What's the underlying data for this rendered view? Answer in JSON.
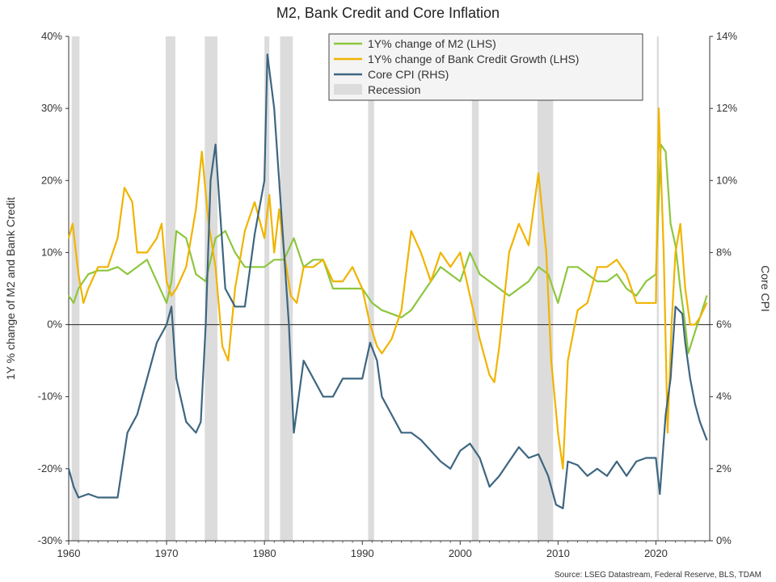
{
  "chart_data": {
    "type": "line",
    "title": "M2, Bank Credit and Core Inflation",
    "ylabel_left": "1Y % change of M2 and Bank Credit",
    "ylabel_right": "Core CPI",
    "source": "Source: LSEG Datastream, Federal Reserve, BLS, TDAM",
    "xlim": [
      1960,
      2025.5
    ],
    "ylim_left": [
      -30,
      40
    ],
    "ylim_right": [
      0,
      14
    ],
    "x_ticks": [
      1960,
      1970,
      1980,
      1990,
      2000,
      2010,
      2020
    ],
    "x_tick_labels": [
      "1960",
      "1970",
      "1980",
      "1990",
      "2000",
      "2010",
      "2020"
    ],
    "y_left_ticks": [
      -30,
      -20,
      -10,
      0,
      10,
      20,
      30,
      40
    ],
    "y_left_tick_labels": [
      "-30%",
      "-20%",
      "-10%",
      "0%",
      "10%",
      "20%",
      "30%",
      "40%"
    ],
    "y_right_ticks": [
      0,
      2,
      4,
      6,
      8,
      10,
      12,
      14
    ],
    "y_right_tick_labels": [
      "0%",
      "2%",
      "4%",
      "6%",
      "8%",
      "10%",
      "12%",
      "14%"
    ],
    "zero_line": 0,
    "legend_position": "top-center",
    "recessions": [
      [
        1960.3,
        1961.1
      ],
      [
        1969.9,
        1970.9
      ],
      [
        1973.9,
        1975.2
      ],
      [
        1980.0,
        1980.5
      ],
      [
        1981.6,
        1982.9
      ],
      [
        1990.6,
        1991.2
      ],
      [
        2001.2,
        2001.9
      ],
      [
        2007.9,
        2009.5
      ],
      [
        2020.1,
        2020.3
      ]
    ],
    "recession_label": "Recession",
    "recession_color": "#dcdcdc",
    "series": [
      {
        "name": "1Y% change of M2 (LHS)",
        "axis": "left",
        "color": "#8dc63f",
        "x": [
          1960,
          1960.5,
          1961,
          1962,
          1963,
          1964,
          1965,
          1966,
          1967,
          1968,
          1969,
          1970,
          1970.5,
          1971,
          1972,
          1973,
          1974,
          1975,
          1976,
          1977,
          1978,
          1979,
          1980,
          1981,
          1982,
          1983,
          1984,
          1985,
          1986,
          1987,
          1988,
          1989,
          1990,
          1991,
          1992,
          1993,
          1994,
          1995,
          1996,
          1997,
          1998,
          1999,
          2000,
          2001,
          2002,
          2003,
          2004,
          2005,
          2006,
          2007,
          2008,
          2009,
          2010,
          2011,
          2012,
          2013,
          2014,
          2015,
          2016,
          2017,
          2018,
          2019,
          2020,
          2020.5,
          2021,
          2021.5,
          2022,
          2022.5,
          2023,
          2023.3,
          2024,
          2024.5,
          2025.2
        ],
        "values": [
          4,
          3,
          5,
          7,
          7.5,
          7.5,
          8,
          7,
          8,
          9,
          6,
          3,
          6,
          13,
          12,
          7,
          6,
          12,
          13,
          10,
          8,
          8,
          8,
          9,
          9,
          12,
          8,
          9,
          9,
          5,
          5,
          5,
          5,
          3,
          2,
          1.5,
          1,
          2,
          4,
          6,
          8,
          7,
          6,
          10,
          7,
          6,
          5,
          4,
          5,
          6,
          8,
          7,
          3,
          8,
          8,
          7,
          6,
          6,
          7,
          5,
          4,
          6,
          7,
          25,
          24,
          14,
          11,
          5,
          0,
          -4,
          -1,
          1,
          4
        ]
      },
      {
        "name": "1Y% change of Bank Credit Growth (LHS)",
        "axis": "left",
        "color": "#f0b400",
        "x": [
          1960,
          1960.4,
          1961,
          1961.5,
          1962,
          1963,
          1964,
          1965,
          1965.7,
          1966.5,
          1967,
          1968,
          1969,
          1969.5,
          1970,
          1970.5,
          1971,
          1972,
          1973,
          1973.6,
          1974.3,
          1975,
          1975.7,
          1976.3,
          1977,
          1978,
          1979,
          1980,
          1980.5,
          1981,
          1981.5,
          1982,
          1982.7,
          1983.3,
          1984,
          1985,
          1986,
          1987,
          1988,
          1989,
          1990,
          1990.8,
          1991.5,
          1992,
          1993,
          1994,
          1995,
          1996,
          1997,
          1998,
          1999,
          2000,
          2001,
          2002,
          2003,
          2003.5,
          2004,
          2005,
          2006,
          2007,
          2008,
          2008.8,
          2009.3,
          2010,
          2010.5,
          2011,
          2012,
          2013,
          2014,
          2015,
          2016,
          2017,
          2018,
          2019,
          2020,
          2020.3,
          2020.8,
          2021.2,
          2021.6,
          2022,
          2022.5,
          2023,
          2023.5,
          2024,
          2024.5,
          2025.2
        ],
        "values": [
          12,
          14,
          7,
          3,
          5,
          8,
          8,
          12,
          19,
          17,
          10,
          10,
          12,
          14,
          6,
          4,
          5,
          8,
          16,
          24,
          14,
          8,
          -3,
          -5,
          5,
          13,
          17,
          12,
          18,
          10,
          16,
          10,
          4,
          3,
          8,
          8,
          9,
          6,
          6,
          8,
          5,
          0,
          -3,
          -4,
          -2,
          2,
          13,
          10,
          6,
          10,
          8,
          10,
          4,
          -2,
          -7,
          -8,
          -3,
          10,
          14,
          11,
          21,
          10,
          -5,
          -15,
          -20,
          -5,
          2,
          3,
          8,
          8,
          9,
          7,
          3,
          3,
          3,
          30,
          10,
          -15,
          0,
          10,
          14,
          5,
          0,
          0,
          1,
          3
        ]
      },
      {
        "name": "Core CPI (RHS)",
        "axis": "right",
        "color": "#3d6680",
        "x": [
          1960,
          1960.5,
          1961,
          1962,
          1963,
          1964,
          1965,
          1966,
          1967,
          1968,
          1969,
          1970,
          1970.5,
          1971,
          1972,
          1973,
          1973.5,
          1974,
          1974.5,
          1975,
          1976,
          1977,
          1978,
          1979,
          1980,
          1980.3,
          1981,
          1981.5,
          1982,
          1982.5,
          1983,
          1984,
          1985,
          1986,
          1987,
          1988,
          1989,
          1990,
          1990.8,
          1991.5,
          1992,
          1993,
          1994,
          1995,
          1996,
          1997,
          1998,
          1999,
          2000,
          2001,
          2002,
          2003,
          2004,
          2005,
          2006,
          2007,
          2008,
          2009,
          2009.8,
          2010.5,
          2011,
          2012,
          2013,
          2014,
          2015,
          2016,
          2017,
          2018,
          2019,
          2020,
          2020.4,
          2021,
          2021.5,
          2022,
          2022.7,
          2023,
          2023.5,
          2024,
          2024.5,
          2025.2
        ],
        "values": [
          2,
          1.5,
          1.2,
          1.3,
          1.2,
          1.2,
          1.2,
          3,
          3.5,
          4.5,
          5.5,
          6,
          6.5,
          4.5,
          3.3,
          3,
          3.3,
          6,
          10,
          11,
          7,
          6.5,
          6.5,
          8.5,
          10,
          13.5,
          12,
          10,
          8,
          6,
          3,
          5,
          4.5,
          4,
          4,
          4.5,
          4.5,
          4.5,
          5.5,
          5,
          4,
          3.5,
          3,
          3,
          2.8,
          2.5,
          2.2,
          2,
          2.5,
          2.7,
          2.3,
          1.5,
          1.8,
          2.2,
          2.6,
          2.3,
          2.4,
          1.8,
          1,
          0.9,
          2.2,
          2.1,
          1.8,
          2,
          1.8,
          2.2,
          1.8,
          2.2,
          2.3,
          2.3,
          1.3,
          3.5,
          4.5,
          6.5,
          6.3,
          5.5,
          4.5,
          3.8,
          3.3,
          2.8
        ]
      }
    ]
  }
}
